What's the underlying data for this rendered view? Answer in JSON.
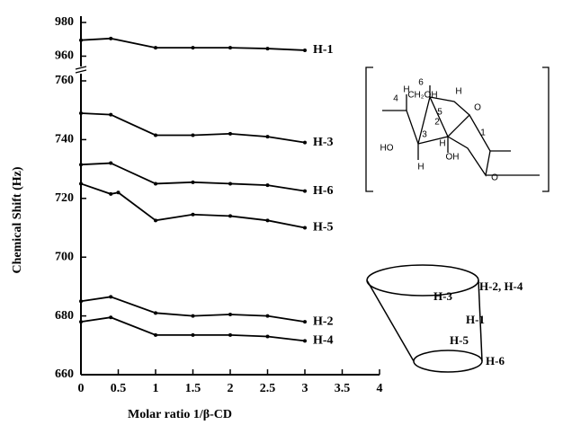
{
  "chart_data": [
    {
      "type": "line",
      "ylim": [
        956,
        980
      ],
      "yticks": [
        960,
        980
      ],
      "series": [
        {
          "name": "H-1",
          "color": "#000000",
          "x": [
            0,
            0.4,
            1,
            1.5,
            2,
            2.5,
            3
          ],
          "values": [
            969.5,
            970.5,
            965,
            965,
            965,
            964.5,
            963.5
          ]
        }
      ]
    },
    {
      "type": "line",
      "xlabel": "Molar ratio 1/β-CD",
      "ylabel": "Chemical Shift (Hz)",
      "xlim": [
        0,
        4
      ],
      "xticks": [
        0,
        0.5,
        1,
        1.5,
        2,
        2.5,
        3,
        3.5,
        4
      ],
      "ylim": [
        660,
        760
      ],
      "yticks": [
        660,
        680,
        700,
        720,
        740,
        760
      ],
      "series": [
        {
          "name": "H-3",
          "color": "#000000",
          "x": [
            0,
            0.4,
            1,
            1.5,
            2,
            2.5,
            3
          ],
          "values": [
            749,
            748.5,
            741.5,
            741.5,
            742,
            741,
            739
          ]
        },
        {
          "name": "H-6",
          "color": "#000000",
          "x": [
            0,
            0.4,
            1,
            1.5,
            2,
            2.5,
            3
          ],
          "values": [
            731.5,
            732,
            725,
            725.5,
            725,
            724.5,
            722.5
          ]
        },
        {
          "name": "H-5",
          "color": "#000000",
          "x": [
            0,
            0.4,
            0.5,
            1,
            1.5,
            2,
            2.5,
            3
          ],
          "values": [
            725,
            721.5,
            722,
            712.5,
            714.5,
            714,
            712.5,
            710
          ]
        },
        {
          "name": "H-2",
          "color": "#000000",
          "x": [
            0,
            0.4,
            1,
            1.5,
            2,
            2.5,
            3
          ],
          "values": [
            685,
            686.5,
            681,
            680,
            680.5,
            680,
            678
          ]
        },
        {
          "name": "H-4",
          "color": "#000000",
          "x": [
            0,
            0.4,
            1,
            1.5,
            2,
            2.5,
            3
          ],
          "values": [
            678,
            679.5,
            673.5,
            673.5,
            673.5,
            673,
            671.5
          ]
        }
      ],
      "cone_labels": [
        "H-2, H-4",
        "H-3",
        "H-1",
        "H-5",
        "H-6"
      ],
      "molecule_labels": [
        "4",
        "6",
        "CH₂OH",
        "5",
        "H",
        "O",
        "HO",
        "3",
        "2",
        "1",
        "H",
        "H",
        "H",
        "OH",
        "O"
      ]
    }
  ]
}
